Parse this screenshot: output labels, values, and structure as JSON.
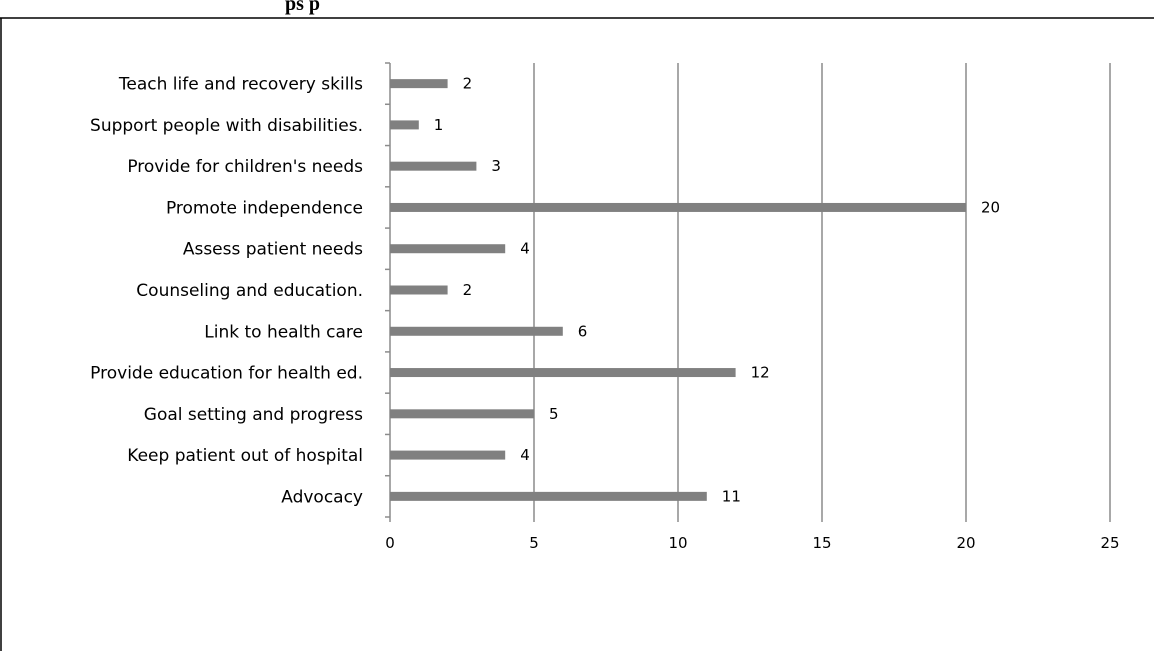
{
  "chart_data": {
    "type": "bar",
    "orientation": "horizontal",
    "title": "",
    "xlabel": "",
    "ylabel": "",
    "categories": [
      "Advocacy",
      "Keep patient out of hospital",
      "Goal setting and progress",
      "Provide education for health ed.",
      "Link to health care",
      "Counseling and education.",
      "Assess patient needs",
      "Promote independence",
      "Provide for children's needs",
      "Support people with disabilities.",
      "Teach life and recovery  skills"
    ],
    "values": [
      11,
      4,
      5,
      12,
      6,
      2,
      4,
      20,
      3,
      1,
      2
    ],
    "xlim": [
      0,
      25
    ],
    "xticks": [
      0,
      5,
      10,
      15,
      20,
      25
    ],
    "xtick_labels": [
      "0",
      "5",
      "10",
      "15",
      "20",
      "25"
    ],
    "grid": "vertical major gridlines",
    "legend": "none",
    "bar_color": "#808080",
    "grid_color": "#8c8c8c"
  },
  "page": {
    "title_fragment": "ps p"
  }
}
